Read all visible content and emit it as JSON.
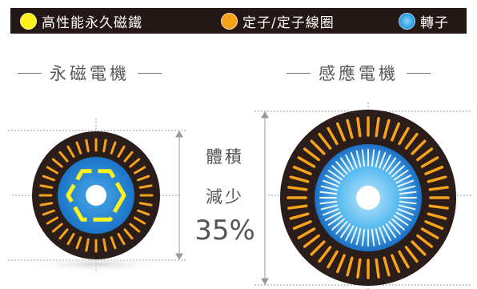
{
  "legend": {
    "items": [
      {
        "label": "高性能永久磁鐵",
        "color": "#fff21c"
      },
      {
        "label": "定子/定子線圈",
        "color": "#f7a21b"
      },
      {
        "label": "轉子",
        "color": "#36a6e8"
      }
    ]
  },
  "left_motor": {
    "title": "永磁電機"
  },
  "right_motor": {
    "title": "感應電機"
  },
  "comparison": {
    "line1": "體積",
    "line2": "減少",
    "value": "35%"
  },
  "colors": {
    "bar": "#231815",
    "magnet": "#fff21c",
    "stator": "#f7a21b",
    "rotor": "#36a6e8",
    "rotor_dark": "#1b6fc4",
    "housing": "#2b1d19"
  }
}
